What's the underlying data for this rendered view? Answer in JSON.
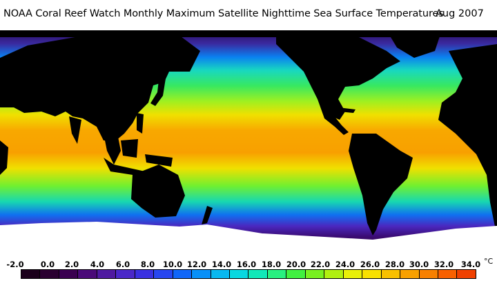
{
  "title": "NOAA Coral Reef Watch Monthly Maximum Satellite Nighttime Sea Surface Temperatures",
  "date": "Aug 2007",
  "scale": {
    "unit": "°C",
    "labels": [
      "-2.0",
      "0.0",
      "2.0",
      "4.0",
      "6.0",
      "8.0",
      "10.0",
      "12.0",
      "14.0",
      "16.0",
      "18.0",
      "20.0",
      "22.0",
      "24.0",
      "26.0",
      "28.0",
      "30.0",
      "32.0",
      "34.0"
    ],
    "colors": [
      "#1a001a",
      "#2a0030",
      "#3a0050",
      "#4a0a78",
      "#4f1aa0",
      "#4a28c8",
      "#3a30e0",
      "#2846f0",
      "#1066f8",
      "#0890f8",
      "#08b8f0",
      "#08d8e0",
      "#10e8b8",
      "#28f080",
      "#40f040",
      "#78f020",
      "#b0f010",
      "#e8f008",
      "#f8e000",
      "#f8c000",
      "#f8a000",
      "#f88000",
      "#f86000",
      "#f04000"
    ]
  }
}
